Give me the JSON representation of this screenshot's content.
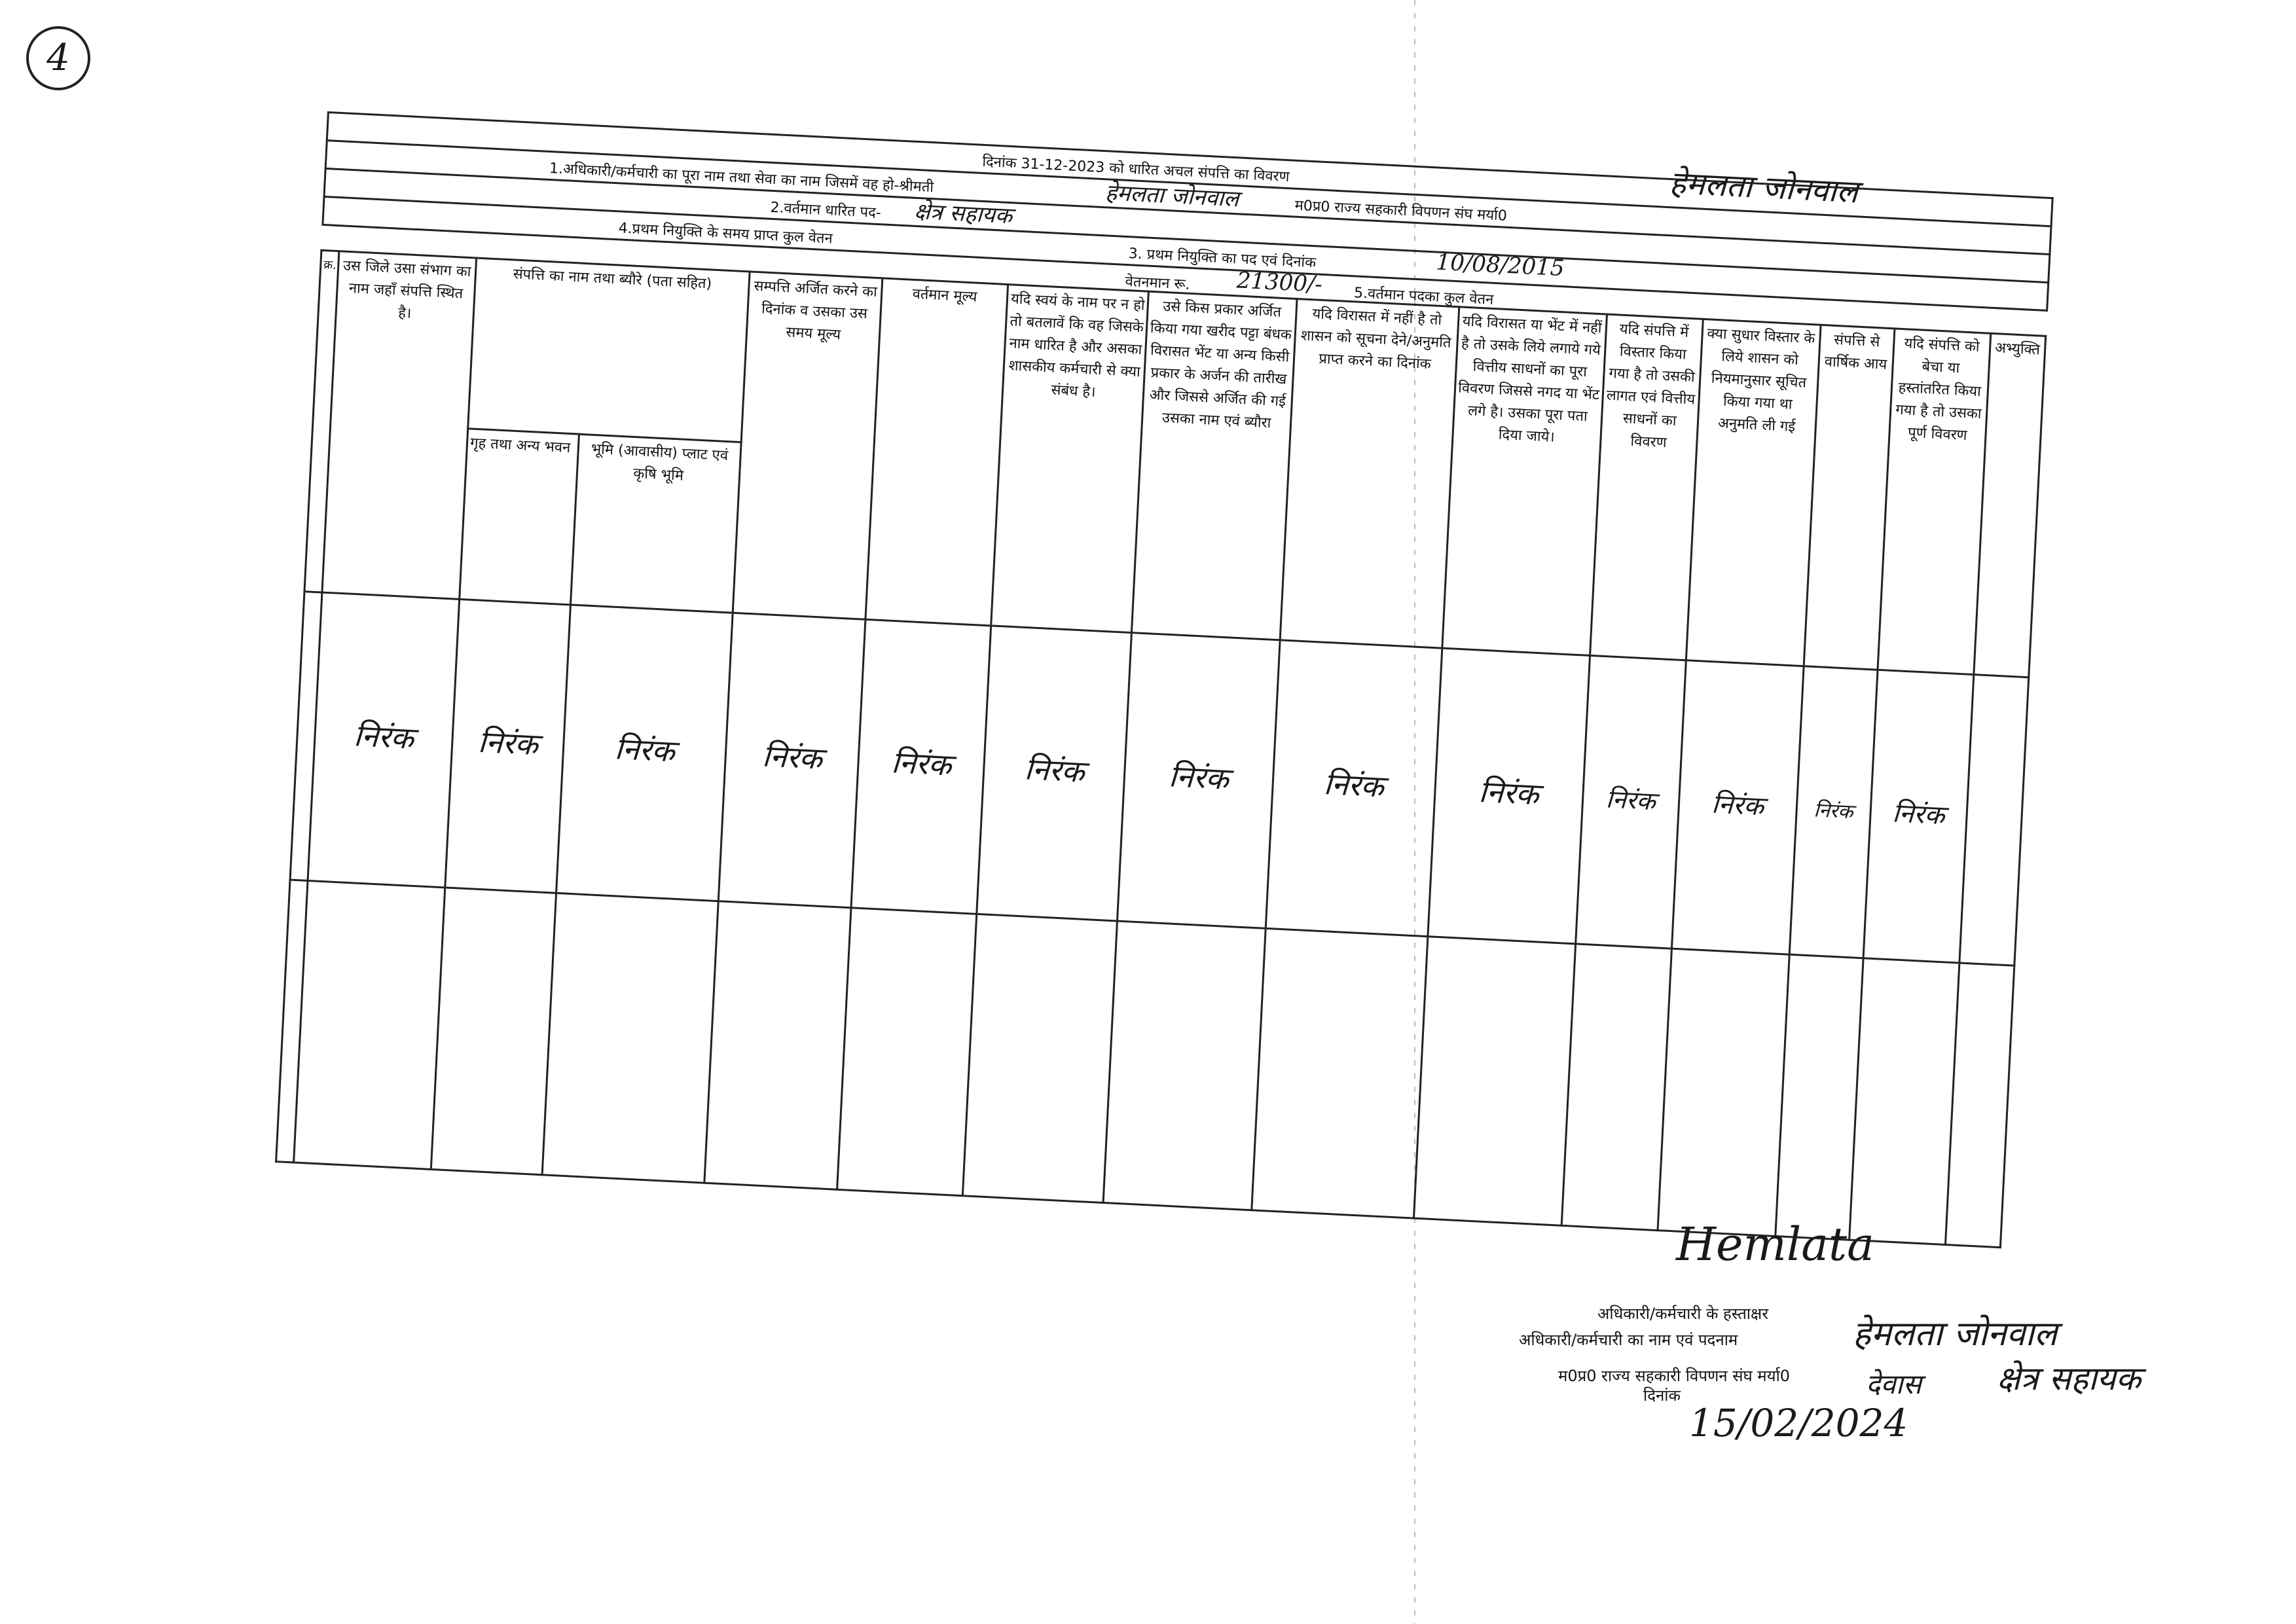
{
  "page_mark": "4",
  "form": {
    "title": "दिनांक 31-12-2023 को धारित अचल संपत्ति का विवरण",
    "line1_label": "1.अधिकारी/कर्मचारी का पूरा नाम तथा सेवा का नाम जिसमें वह हो-श्रीमती",
    "line1_org": "म0प्र0 राज्य सहकारी विपणन संघ मर्या0",
    "line1_name_handwritten": "हेमलता जोनवाल",
    "line2_label": "2.वर्तमान धारित पद-",
    "line2_value": "क्षेत्र सहायक",
    "line3_label": "3. प्रथम नियुक्ति का पद एवं दिनांक",
    "line3_value": "10/08/2015",
    "line4_label": "4.प्रथम नियुक्ति के समय प्राप्त कुल वेतन",
    "payscale_label": "वेतनमान रू.",
    "payscale_value": "21300/-",
    "line5_label": "5.वर्तमान पदका कुल वेतन"
  },
  "columns": [
    "क्र.",
    "उस जिले उसा संभाग का नाम जहाँ संपत्ति स्थित है।",
    "संपत्ति का नाम तथा ब्यौरे (पता सहित)",
    "सम्पत्ति अर्जित करने का दिनांक व उसका उस समय मूल्य",
    "वर्तमान मूल्य",
    "यदि स्वयं के नाम पर न हो तो बतलावें कि वह जिसके नाम धारित है और असका शासकीय कर्मचारी से क्या संबंध है।",
    "उसे किस प्रकार अर्जित किया गया खरीद पट्टा बंधक विरासत भेंट या अन्य किसी प्रकार के अर्जन की तारीख और जिससे अर्जित की गई उसका नाम एवं ब्यौरा",
    "यदि विरासत में नहीं है तो शासन को सूचना देने/अनुमति प्राप्त करने का दिनांक",
    "यदि विरासत या भेंट में नहीं है तो उसके लिये लगाये गये वित्तीय साधनों का पूरा विवरण जिससे नगद या भेंट लगे है। उसका पूरा पता दिया जाये।",
    "यदि संपत्ति में विस्तार किया गया है तो उसकी लागत एवं वित्तीय साधनों का विवरण",
    "क्या सुधार विस्तार के लिये शासन को नियमानुसार सूचित किया गया था अनुमति ली गई",
    "संपत्ति से वार्षिक आय",
    "यदि संपत्ति को बेचा या हस्तांतरित किया गया है तो उसका पूर्ण विवरण",
    "अभ्युक्ति"
  ],
  "subcolumns": [
    "गृह तथा अन्य भवन",
    "भूमि (आवासीय) प्लाट एवं कृषि भूमि"
  ],
  "data_row": [
    "",
    "निरंक",
    "निरंक",
    "निरंक",
    "निरंक",
    "निरंक",
    "निरंक",
    "निरंक",
    "निरंक",
    "निरंक",
    "निरंक",
    "निरंक",
    "निरंक",
    "निरंक",
    ""
  ],
  "footer": {
    "signature_label": "अधिकारी/कर्मचारी के हस्ताक्षर",
    "signature": "Hemlata",
    "name_label": "अधिकारी/कर्मचारी का नाम एवं पदनाम",
    "name_value": "हेमलता जोनवाल",
    "org_label": "म0प्र0 राज्य सहकारी विपणन संघ मर्या0",
    "org_value": "देवास",
    "designation": "क्षेत्र सहायक",
    "date_label": "दिनांक",
    "date_value": "15/02/2024"
  }
}
